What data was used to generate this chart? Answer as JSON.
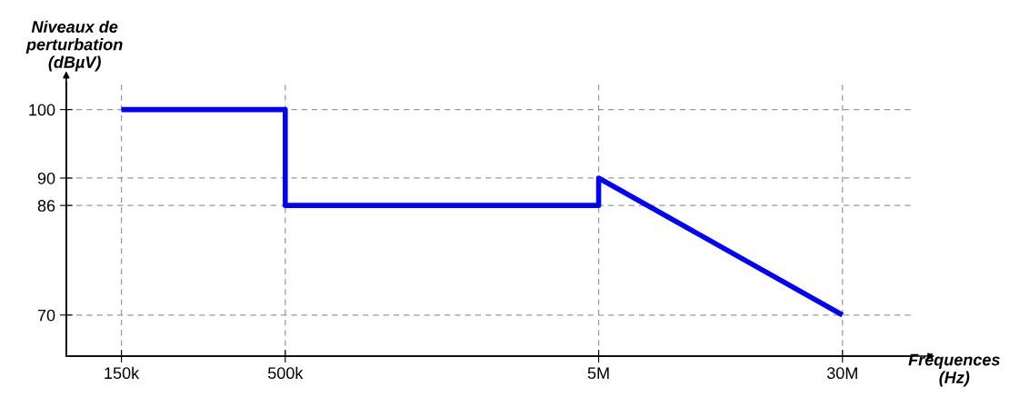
{
  "chart_data": {
    "type": "line",
    "xlabel": "Fréquences\n(Hz)",
    "ylabel": "Niveaux de\nperturbation\n(dBµV)",
    "log": "x",
    "x": [
      150000,
      500000,
      500000,
      5000000,
      5000000,
      30000000
    ],
    "series": [
      {
        "color": "#0000ff",
        "values": [
          100,
          100,
          86,
          86,
          90,
          70
        ]
      }
    ],
    "xlim": [
      100000,
      50000000
    ],
    "xticks": [
      {
        "value": 150000,
        "label": "150k"
      },
      {
        "value": 500000,
        "label": "500k"
      },
      {
        "value": 5000000,
        "label": "5M"
      },
      {
        "value": 30000000,
        "label": "30M"
      }
    ],
    "ylim": [
      64,
      104
    ],
    "yticks": [
      70,
      86,
      90,
      100
    ],
    "grid": true,
    "line_style": "solid",
    "marker": "none"
  }
}
